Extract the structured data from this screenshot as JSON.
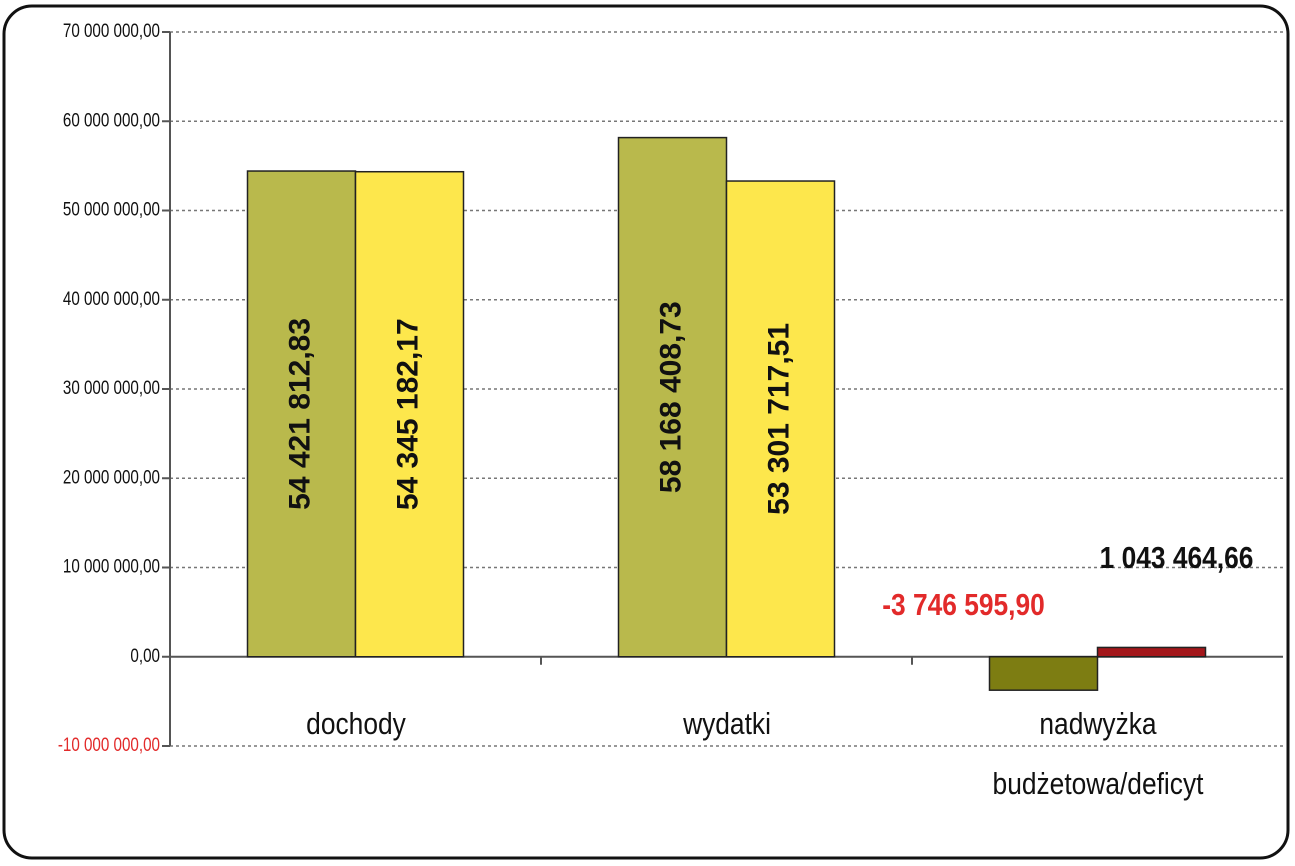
{
  "chart_data": {
    "type": "bar",
    "categories": [
      "dochody",
      "wydatki",
      "nadwyżka budżetowa/deficyt"
    ],
    "series": [
      {
        "colors": [
          "#b9b94c",
          "#b9b94c",
          "#7d7d12"
        ],
        "values": [
          54421812.83,
          58168408.73,
          -3746595.9
        ],
        "value_labels": [
          "54 421 812,83",
          "58 168 408,73",
          "-3 746 595,90"
        ],
        "value_label_colors": [
          "#111111",
          "#111111",
          "#e22a2a"
        ]
      },
      {
        "colors": [
          "#fde74c",
          "#fde74c",
          "#a3161a"
        ],
        "values": [
          54345182.17,
          53301717.51,
          1043464.66
        ],
        "value_labels": [
          "54 345 182,17",
          "53 301 717,51",
          "1 043 464,66"
        ],
        "value_label_colors": [
          "#111111",
          "#111111",
          "#111111"
        ]
      }
    ],
    "ylim": [
      -10000000,
      70000000
    ],
    "yticks": [
      {
        "value": -10000000,
        "label": "-10 000 000,00"
      },
      {
        "value": 0,
        "label": "0,00"
      },
      {
        "value": 10000000,
        "label": "10 000 000,00"
      },
      {
        "value": 20000000,
        "label": "20 000 000,00"
      },
      {
        "value": 30000000,
        "label": "30 000 000,00"
      },
      {
        "value": 40000000,
        "label": "40 000 000,00"
      },
      {
        "value": 50000000,
        "label": "50 000 000,00"
      },
      {
        "value": 60000000,
        "label": "60 000 000,00"
      },
      {
        "value": 70000000,
        "label": "70 000 000,00"
      }
    ],
    "negative_tick_color": "#e22a2a",
    "grid": true
  }
}
